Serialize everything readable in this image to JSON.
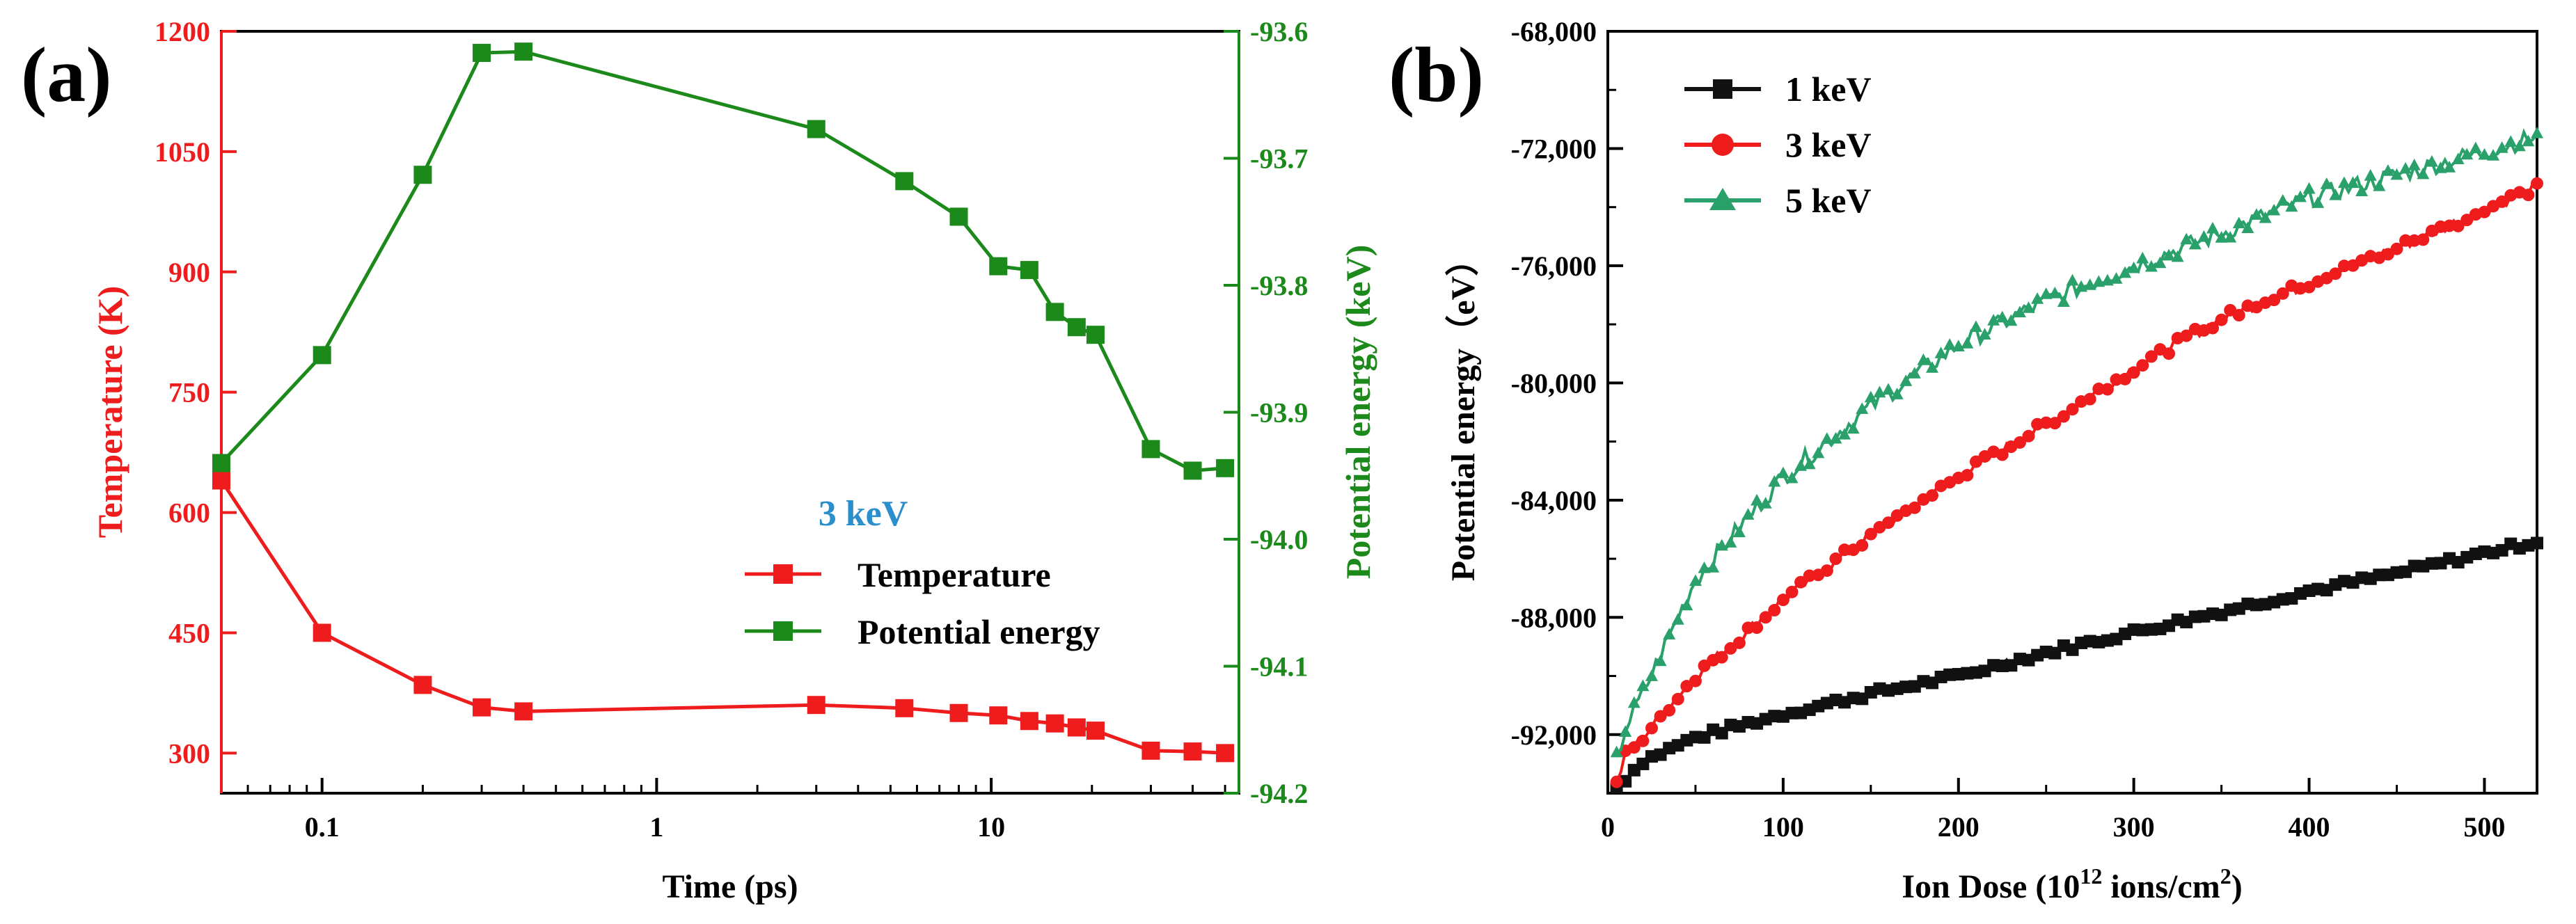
{
  "chart_data": [
    {
      "panel": "(a)",
      "type": "line",
      "xscale": "log",
      "xlabel": "Time (ps)",
      "xlim": [
        0.05,
        55
      ],
      "xticks": [
        0.1,
        1,
        10
      ],
      "xtick_labels": [
        "0.1",
        "1",
        "10"
      ],
      "ylabel_left": "Temperature (K)",
      "ylim_left": [
        250,
        1200
      ],
      "yticks_left": [
        "300",
        "450",
        "600",
        "750",
        "900",
        "1050",
        "1200"
      ],
      "ylabel_right": "Potential energy (keV)",
      "ylim_right": [
        -94.2,
        -93.6
      ],
      "yticks_right": [
        "-93.6",
        "-93.7",
        "-93.8",
        "-93.9",
        "-94.0",
        "-94.1",
        "-94.2"
      ],
      "legend_title": "3 keV",
      "series": [
        {
          "name": "Temperature",
          "axis": "left",
          "color": "#ee1c1c",
          "marker": "square",
          "x": [
            0.05,
            0.1,
            0.2,
            0.3,
            0.4,
            3,
            5.5,
            8,
            10.5,
            13,
            15.5,
            18,
            20.5,
            30,
            40,
            50
          ],
          "y": [
            640,
            450,
            385,
            357,
            352,
            360,
            356,
            350,
            347,
            340,
            337,
            332,
            328,
            303,
            302,
            300
          ]
        },
        {
          "name": "Potential energy",
          "axis": "right",
          "color": "#1b8a1b",
          "marker": "square",
          "x": [
            0.05,
            0.1,
            0.2,
            0.3,
            0.4,
            3,
            5.5,
            8,
            10.5,
            13,
            15.5,
            18,
            20.5,
            30,
            40,
            50
          ],
          "y": [
            -93.94,
            -93.855,
            -93.713,
            -93.617,
            -93.616,
            -93.677,
            -93.718,
            -93.746,
            -93.785,
            -93.788,
            -93.821,
            -93.833,
            -93.839,
            -93.929,
            -93.946,
            -93.944
          ]
        }
      ]
    },
    {
      "panel": "(b)",
      "type": "line",
      "xlabel_main": "Ion Dose (10",
      "xlabel_sup": "12",
      "xlabel_mid": " ions/cm",
      "xlabel_sup2": "2",
      "xlabel_end": ")",
      "ylabel": "Potential energy（eV）",
      "xlim": [
        0,
        530
      ],
      "ylim": [
        -94000,
        -68000
      ],
      "xticks": [
        0,
        100,
        200,
        300,
        400,
        500
      ],
      "xtick_labels": [
        "0",
        "100",
        "200",
        "300",
        "400",
        "500"
      ],
      "yticks": [
        -68000,
        -72000,
        -76000,
        -80000,
        -84000,
        -88000,
        -92000
      ],
      "ytick_labels": [
        "-68,000",
        "-72,000",
        "-76,000",
        "-80,000",
        "-84,000",
        "-88,000",
        "-92,000"
      ],
      "series": [
        {
          "name": "1 keV",
          "color": "#111111",
          "marker": "square",
          "x": [
            5,
            20,
            50,
            100,
            150,
            200,
            250,
            300,
            350,
            400,
            450,
            500,
            530
          ],
          "y": [
            -93800,
            -92900,
            -92100,
            -91300,
            -90600,
            -90000,
            -89200,
            -88500,
            -87800,
            -87100,
            -86500,
            -85800,
            -85400
          ]
        },
        {
          "name": "3 keV",
          "color": "#ee1c1c",
          "marker": "circle",
          "x": [
            5,
            10,
            20,
            50,
            100,
            150,
            200,
            250,
            300,
            350,
            400,
            450,
            500,
            530
          ],
          "y": [
            -93700,
            -92700,
            -92100,
            -90000,
            -87400,
            -85200,
            -83200,
            -81400,
            -79500,
            -77800,
            -76600,
            -75400,
            -74100,
            -73300
          ]
        },
        {
          "name": "5 keV",
          "color": "#2aa06a",
          "marker": "triangle",
          "x": [
            5,
            10,
            20,
            50,
            100,
            150,
            200,
            250,
            300,
            350,
            400,
            450,
            500,
            530
          ],
          "y": [
            -92900,
            -91800,
            -90600,
            -86700,
            -83200,
            -80800,
            -78700,
            -77200,
            -76000,
            -74900,
            -73700,
            -72900,
            -72100,
            -71600
          ]
        }
      ]
    }
  ]
}
